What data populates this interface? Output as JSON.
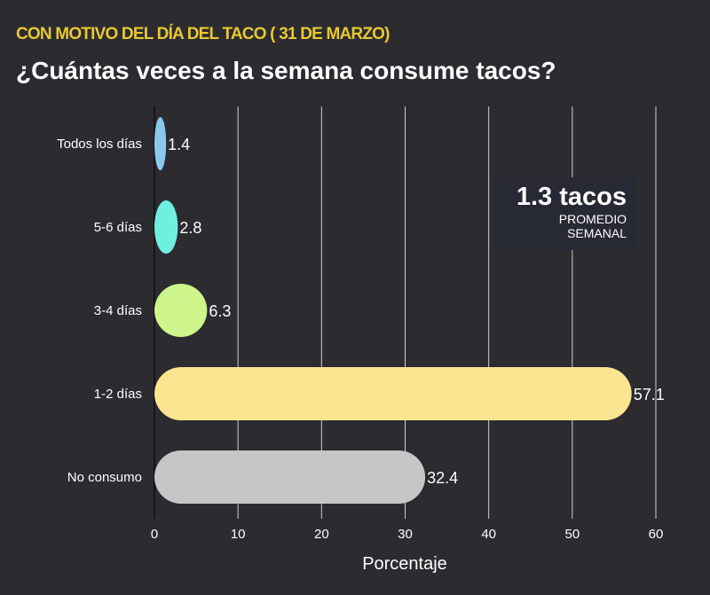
{
  "header": {
    "subtitle": "CON MOTIVO DEL DÍA DEL TACO ( 31 DE MARZO)",
    "title": "¿Cuántas veces a la semana consume tacos?"
  },
  "badge": {
    "value": "1.3 tacos",
    "label1": "PROMEDIO",
    "label2": "SEMANAL"
  },
  "chart_data": {
    "type": "bar",
    "orientation": "horizontal",
    "categories": [
      "Todos los días",
      "5-6 días",
      "3-4 días",
      "1-2 días",
      "No consumo"
    ],
    "values": [
      1.4,
      2.8,
      6.3,
      57.1,
      32.4
    ],
    "value_labels": [
      "1.4",
      "2.8",
      "6.3",
      "57.1",
      "32.4"
    ],
    "colors": [
      "#8cc8ee",
      "#6eefdf",
      "#cdf58b",
      "#fbe590",
      "#c6c6c6"
    ],
    "xlabel": "Porcentaje",
    "ylabel": "",
    "xlim": [
      0,
      60
    ],
    "xticks": [
      0,
      10,
      20,
      30,
      40,
      50,
      60
    ],
    "xtick_labels": [
      "0",
      "10",
      "20",
      "30",
      "40",
      "50",
      "60"
    ],
    "grid": true
  }
}
